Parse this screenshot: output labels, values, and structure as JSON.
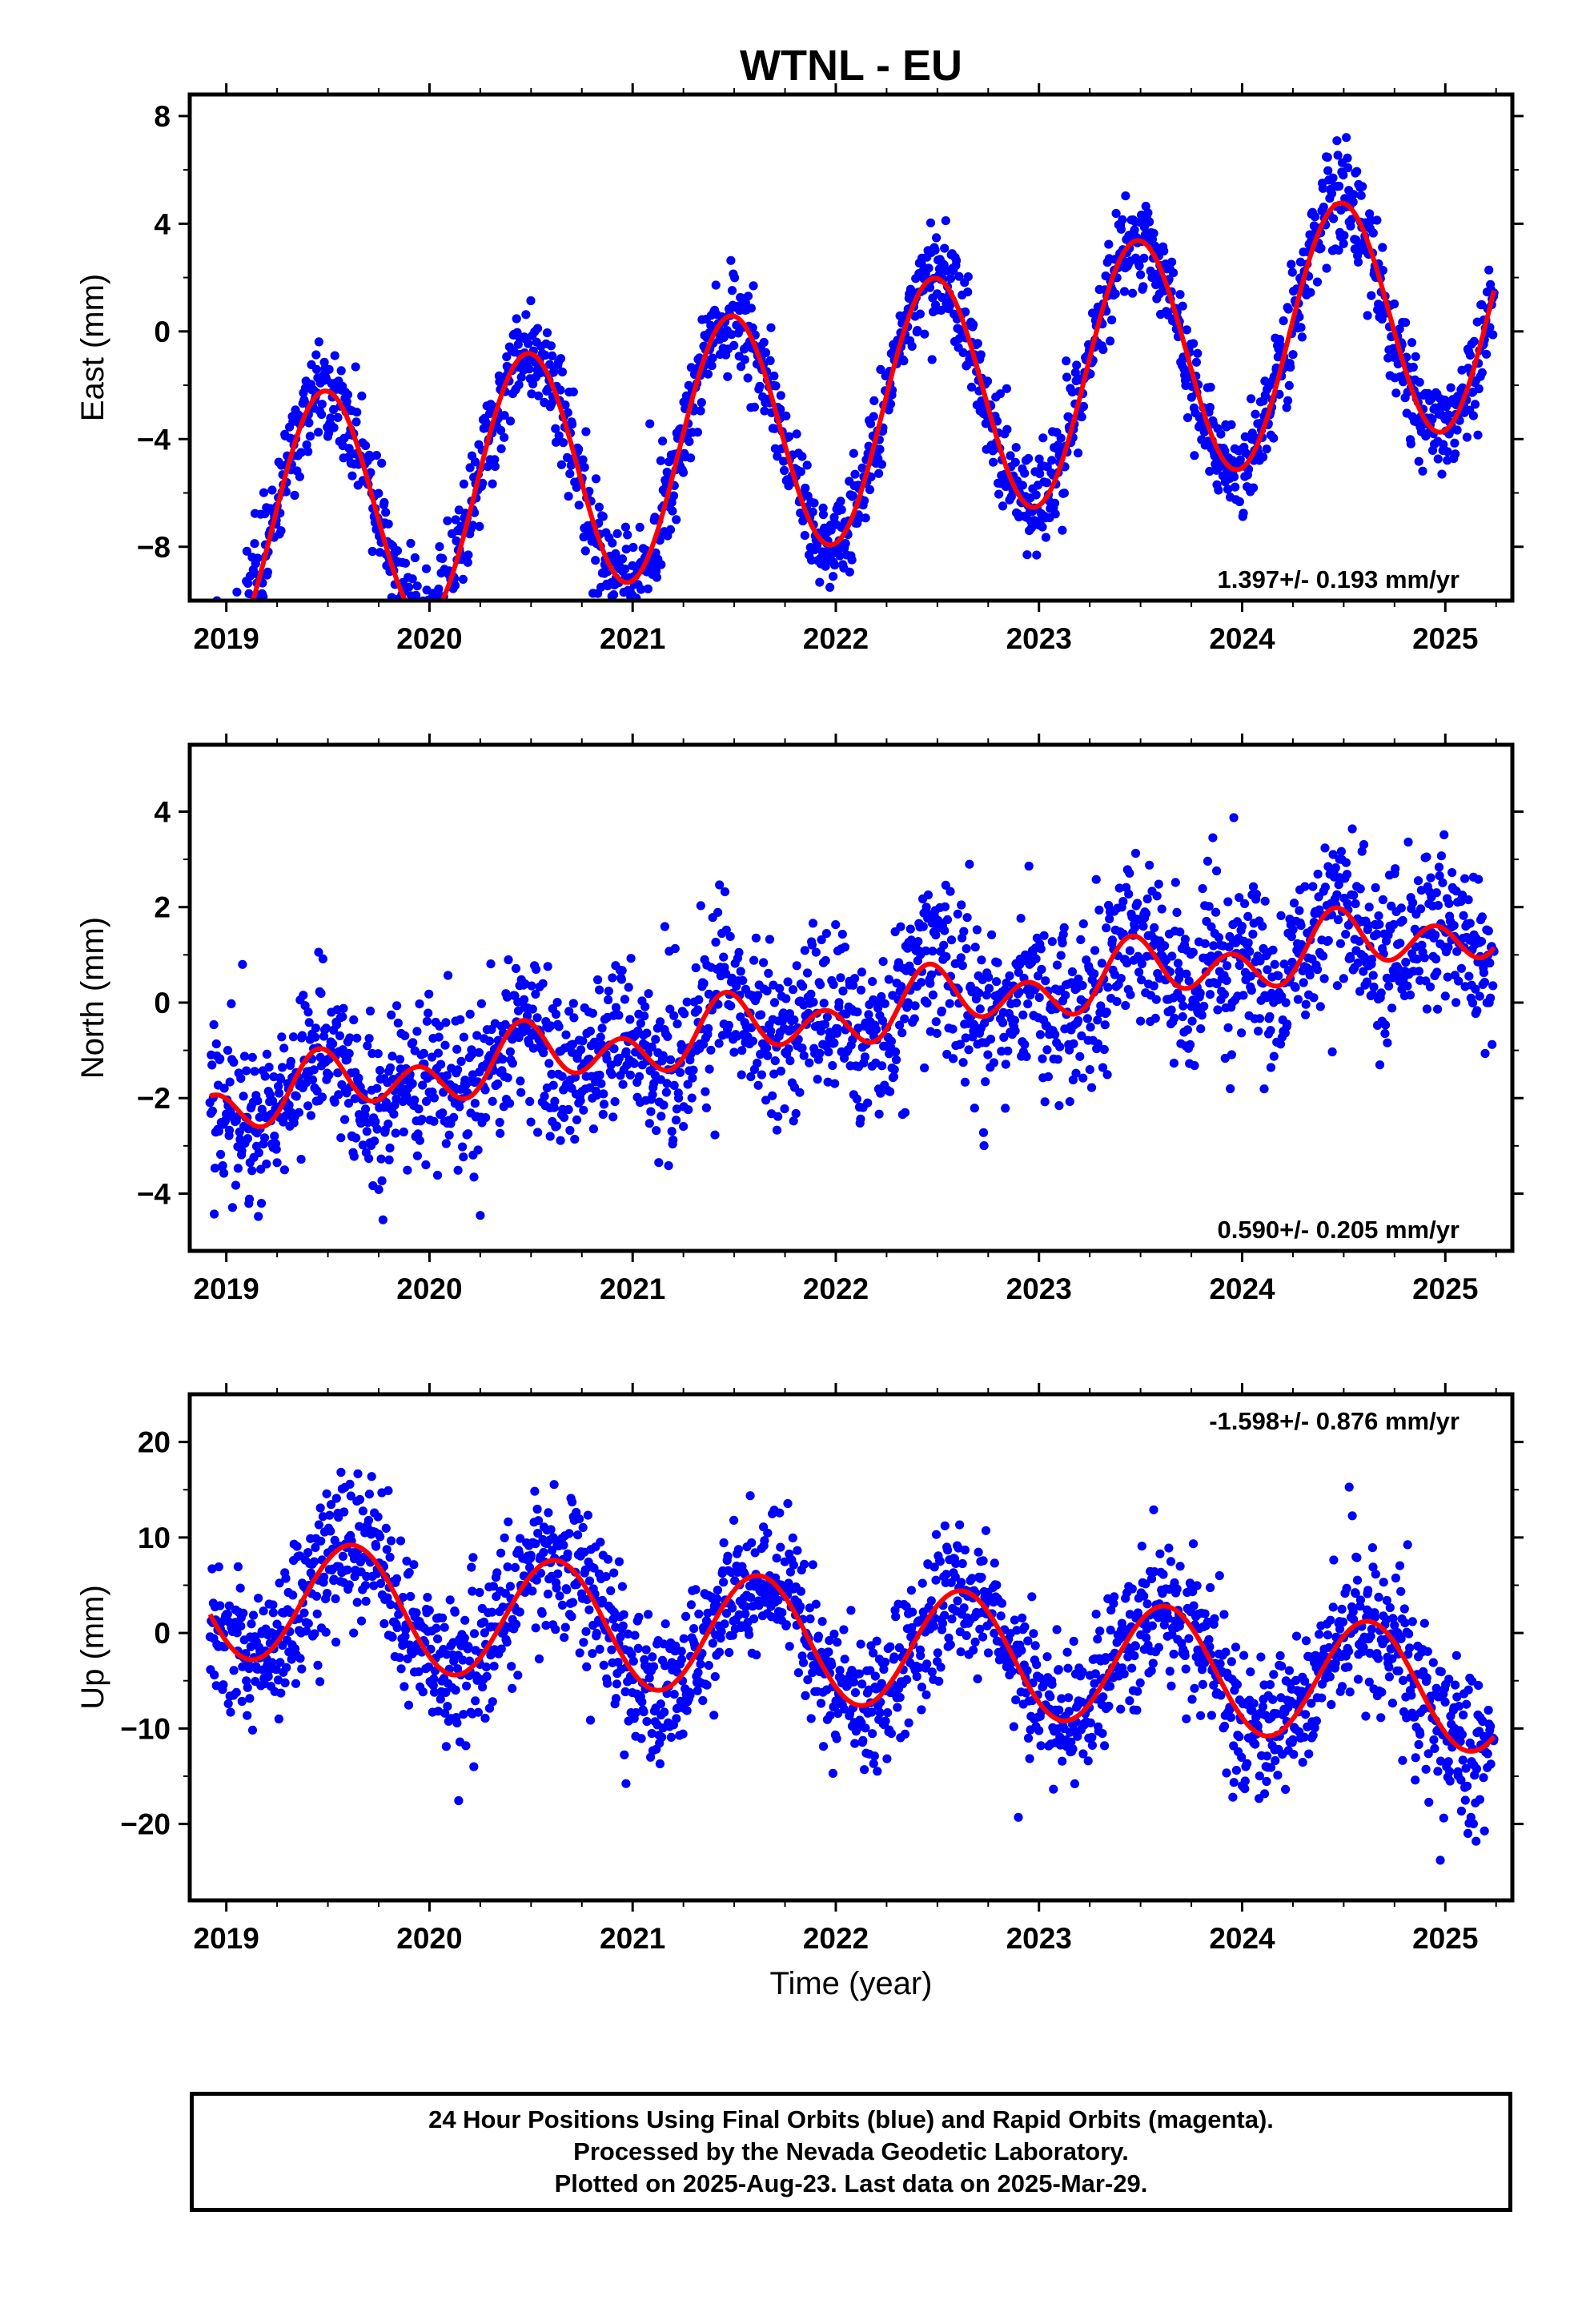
{
  "title": "WTNL - EU",
  "xlabel": "Time (year)",
  "caption": [
    "24 Hour Positions Using Final Orbits (blue) and Rapid Orbits (magenta).",
    "Processed by the Nevada Geodetic Laboratory.",
    "Plotted on 2025-Aug-23. Last data on 2025-Mar-29."
  ],
  "colors": {
    "points": "#0000ff",
    "fit": "#ff0000",
    "axes": "#000000"
  },
  "chart_data": [
    {
      "type": "scatter",
      "ylabel": "East (mm)",
      "xlim": [
        2018.82,
        2025.33
      ],
      "ylim": [
        -10,
        8.8
      ],
      "xticks": [
        "2019",
        "2020",
        "2021",
        "2022",
        "2023",
        "2024",
        "2025"
      ],
      "yticks": [
        8,
        4,
        0,
        -4,
        -8
      ],
      "ytick_labels": [
        "8",
        "4",
        "0",
        "−4",
        "−8"
      ],
      "rate_label": "1.397+/- 0.193 mm/yr",
      "rate_position": "bottom-right",
      "fit_model": {
        "intercept": -3.3,
        "rate": 1.397,
        "t0": 2022.0,
        "annual_amplitude": 4.6,
        "annual_peak": 2019.48
      },
      "scatter_sigma": 0.9,
      "data_range": [
        2018.92,
        2025.24
      ]
    },
    {
      "type": "scatter",
      "ylabel": "North (mm)",
      "xlim": [
        2018.82,
        2025.33
      ],
      "ylim": [
        -5.2,
        5.4
      ],
      "xticks": [
        "2019",
        "2020",
        "2021",
        "2022",
        "2023",
        "2024",
        "2025"
      ],
      "yticks": [
        4,
        2,
        0,
        -2,
        -4
      ],
      "ytick_labels": [
        "4",
        "2",
        "0",
        "−2",
        "−4"
      ],
      "rate_label": "0.590+/- 0.205 mm/yr",
      "rate_position": "bottom-right",
      "fit_model": {
        "intercept": -0.3,
        "rate": 0.59,
        "t0": 2022.0,
        "annual_amplitude": 0.35,
        "annual_peak": 2019.5,
        "semiannual_amplitude": 0.5,
        "semiannual_peak": 2019.45
      },
      "scatter_sigma": 0.85,
      "data_range": [
        2018.92,
        2025.24
      ]
    },
    {
      "type": "scatter",
      "ylabel": "Up (mm)",
      "xlim": [
        2018.82,
        2025.33
      ],
      "ylim": [
        -28,
        25
      ],
      "xticks": [
        "2019",
        "2020",
        "2021",
        "2022",
        "2023",
        "2024",
        "2025"
      ],
      "yticks": [
        20,
        10,
        0,
        -10,
        -20
      ],
      "ytick_labels": [
        "20",
        "10",
        "0",
        "−10",
        "−20"
      ],
      "rate_label": "-1.598+/- 0.876 mm/yr",
      "rate_position": "top-right",
      "fit_model": {
        "intercept": -1.0,
        "rate": -1.598,
        "t0": 2022.0,
        "annual_amplitude": 6.4,
        "annual_peak": 2019.62
      },
      "scatter_sigma": 3.8,
      "data_range": [
        2018.92,
        2025.24
      ]
    }
  ]
}
